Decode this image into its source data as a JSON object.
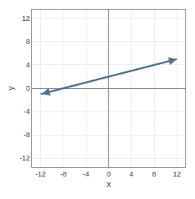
{
  "chart_data": {
    "type": "line",
    "x": [
      -12,
      12
    ],
    "values": [
      -1,
      5
    ],
    "color": "#4d7294",
    "marker": "arrow",
    "xlabel": "x",
    "ylabel": "y",
    "xlim": [
      -13.5,
      13.5
    ],
    "ylim": [
      -13.5,
      13.5
    ],
    "xticks": [
      -12,
      -8,
      -4,
      0,
      4,
      8,
      12
    ],
    "yticks": [
      -12,
      -8,
      -4,
      0,
      4,
      8,
      12
    ],
    "grid": true
  }
}
